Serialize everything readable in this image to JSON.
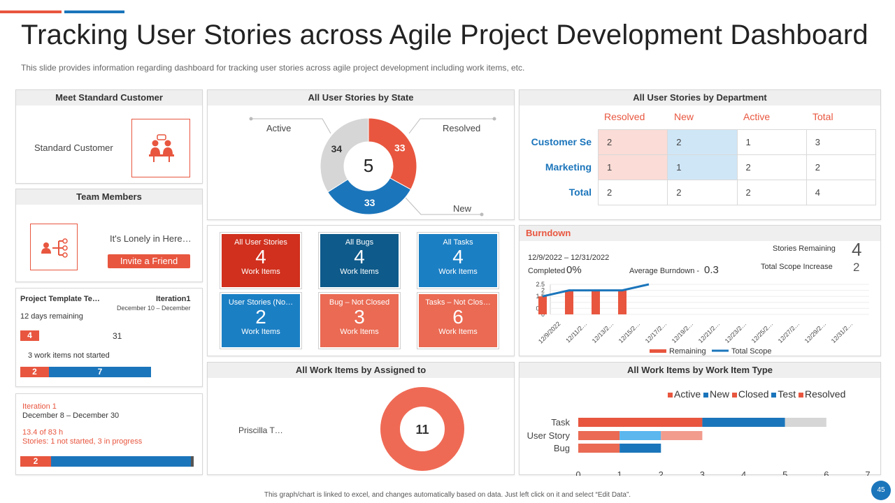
{
  "header": {
    "title": "Tracking User Stories across Agile Project Development Dashboard",
    "subtitle": "This slide provides  information regarding  dashboard for tracking user stories across agile project development  including work items, etc."
  },
  "colors": {
    "red": "#e8563f",
    "blue": "#1b75bb",
    "light_blue": "#5bb7ee",
    "grey": "#d6d6d6",
    "dark_red": "#d0301d",
    "dark_blue": "#0e5a8a"
  },
  "customer": {
    "title": "Meet Standard Customer",
    "label": "Standard Customer",
    "icon": "meeting-people-icon"
  },
  "team": {
    "title": "Team Members",
    "message": "It's Lonely in Here…",
    "invite_label": "Invite  a Friend",
    "icon": "team-hierarchy-icon"
  },
  "iteration_summary": {
    "project": "Project Template Te…",
    "iteration": "Iteration1",
    "dates": "December 10 – December",
    "remaining": "12 days remaining",
    "badge_value": "4",
    "count": "31",
    "not_started": "3  work items not started",
    "bar_red": "2",
    "bar_blue": "7"
  },
  "iteration_detail": {
    "name": "Iteration 1",
    "dates": "December 8 – December 30",
    "hours": "13.4 of 83 h",
    "stories": "Stories: 1 not started, 3 in progress",
    "bar_red": "2"
  },
  "stories_by_state": {
    "title": "All User Stories by State",
    "total": "5",
    "segments": [
      {
        "label": "Resolved",
        "value": 33,
        "color": "#e8563f"
      },
      {
        "label": "New",
        "value": 33,
        "color": "#1b75bb"
      },
      {
        "label": "Active",
        "value": 34,
        "color": "#d6d6d6"
      }
    ]
  },
  "tiles": [
    {
      "label": "All User Stories",
      "value": "4",
      "sub": "Work Items",
      "color": "#d0301d"
    },
    {
      "label": "All Bugs",
      "value": "4",
      "sub": "Work Items",
      "color": "#0e5a8a"
    },
    {
      "label": "All Tasks",
      "value": "4",
      "sub": "Work Items",
      "color": "#1b7fc4"
    },
    {
      "label": "User Stories (No…",
      "value": "2",
      "sub": "Work Items",
      "color": "#1b7fc4"
    },
    {
      "label": "Bug – Not Closed",
      "value": "3",
      "sub": "Work Items",
      "color": "#ea6a53"
    },
    {
      "label": "Tasks – Not Clos…",
      "value": "6",
      "sub": "Work Items",
      "color": "#ea6a53"
    }
  ],
  "department": {
    "title": "All User Stories by Department",
    "headers": [
      "Resolved",
      "New",
      "Active",
      "Total"
    ],
    "rows": [
      {
        "label": "Customer  Se",
        "values": [
          "2",
          "2",
          "1",
          "3"
        ]
      },
      {
        "label": "Marketing",
        "values": [
          "1",
          "1",
          "2",
          "2"
        ]
      },
      {
        "label": "Total",
        "values": [
          "2",
          "2",
          "2",
          "4"
        ]
      }
    ]
  },
  "burndown": {
    "title": "Burndown",
    "date_range": "12/9/2022 – 12/31/2022",
    "completed_label": "Completed",
    "completed_value": "0%",
    "avg_label": "Average Burndown -",
    "avg_value": "0.3",
    "stories_remaining_label": "Stories Remaining",
    "stories_remaining_value": "4",
    "scope_label": "Total Scope Increase",
    "scope_value": "2",
    "legend_remaining": "Remaining",
    "legend_scope": "Total Scope"
  },
  "chart_data": [
    {
      "type": "bar",
      "title": "Burndown",
      "categories": [
        "12/9/2022",
        "12/11/2…",
        "12/13/2…",
        "12/15/2…",
        "12/17/2…",
        "12/19/2…",
        "12/21/2…",
        "12/23/2…",
        "12/25/2…",
        "12/27/2…",
        "12/29/2…",
        "12/31/2…"
      ],
      "yticks": [
        "0",
        "0.5",
        "1",
        "1.5",
        "2",
        "2.5"
      ],
      "ylim": [
        0,
        2.5
      ],
      "series": [
        {
          "name": "Remaining",
          "type": "bar",
          "values": [
            1.5,
            2,
            2,
            2,
            null,
            null,
            null,
            null,
            null,
            null,
            null,
            null
          ]
        },
        {
          "name": "Total Scope",
          "type": "line",
          "values": [
            1.5,
            2,
            2,
            2,
            2.5,
            null,
            null,
            null,
            null,
            null,
            null,
            null
          ]
        }
      ]
    },
    {
      "type": "pie",
      "title": "All User Stories by State",
      "categories": [
        "Resolved",
        "New",
        "Active"
      ],
      "values": [
        33,
        33,
        34
      ]
    },
    {
      "type": "pie",
      "title": "All Work Items by Assigned to",
      "categories": [
        "Priscilla T…"
      ],
      "values": [
        11
      ]
    },
    {
      "type": "bar",
      "title": "All Work Items by Work Item Type",
      "orientation": "horizontal",
      "stacked": true,
      "categories": [
        "Task",
        "User Story",
        "Bug"
      ],
      "xlim": [
        0,
        7
      ],
      "xticks": [
        "0",
        "1",
        "2",
        "3",
        "4",
        "5",
        "6",
        "7"
      ],
      "series": [
        {
          "name": "Active",
          "values": [
            3,
            1,
            1
          ]
        },
        {
          "name": "New",
          "values": [
            2,
            1,
            1
          ]
        },
        {
          "name": "Closed",
          "values": [
            1,
            1,
            0
          ]
        },
        {
          "name": "Test",
          "values": [
            0,
            0,
            0
          ]
        },
        {
          "name": "Resolved",
          "values": [
            0,
            0,
            0
          ]
        }
      ]
    }
  ],
  "assigned": {
    "title": "All Work Items by Assigned to",
    "person": "Priscilla T…",
    "total": "11"
  },
  "work_item_type": {
    "title": "All Work Items by Work Item Type",
    "legend": [
      "Active",
      "New",
      "Closed",
      "Test",
      "Resolved"
    ]
  },
  "footer": {
    "note": "This graph/chart is linked to excel, and changes automatically based on data. Just left click on it and select “Edit Data”.",
    "page": "45"
  }
}
